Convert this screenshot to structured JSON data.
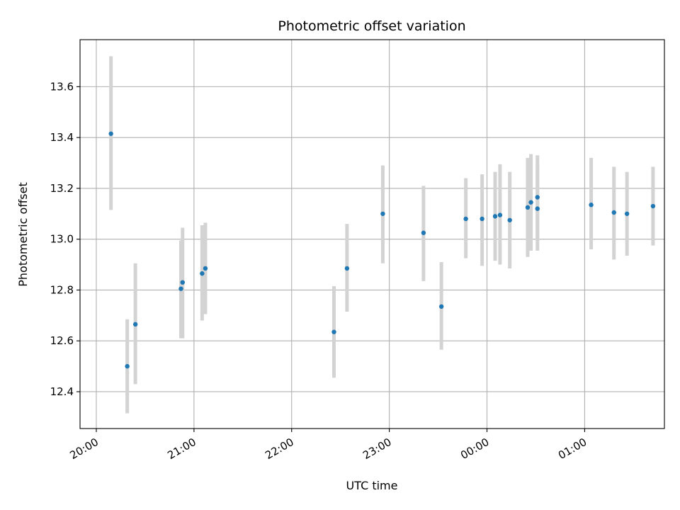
{
  "chart_data": {
    "type": "scatter",
    "title": "Photometric offset variation",
    "xlabel": "UTC time",
    "ylabel": "Photometric offset",
    "grid": true,
    "x_axis_type": "time",
    "xlim": [
      "19:50",
      "01:49"
    ],
    "ylim": [
      12.255,
      13.785
    ],
    "x_ticks": [
      "20:00",
      "21:00",
      "22:00",
      "23:00",
      "00:00",
      "01:00"
    ],
    "y_ticks": [
      12.4,
      12.6,
      12.8,
      13.0,
      13.2,
      13.4,
      13.6
    ],
    "points": [
      {
        "x": "20:09",
        "y": 13.415,
        "ylo": 13.115,
        "yhi": 13.72
      },
      {
        "x": "20:19",
        "y": 12.5,
        "ylo": 12.315,
        "yhi": 12.685
      },
      {
        "x": "20:24",
        "y": 12.665,
        "ylo": 12.43,
        "yhi": 12.905
      },
      {
        "x": "20:52",
        "y": 12.805,
        "ylo": 12.61,
        "yhi": 12.995
      },
      {
        "x": "20:53",
        "y": 12.83,
        "ylo": 12.61,
        "yhi": 13.045
      },
      {
        "x": "21:05",
        "y": 12.865,
        "ylo": 12.68,
        "yhi": 13.055
      },
      {
        "x": "21:07",
        "y": 12.885,
        "ylo": 12.705,
        "yhi": 13.065
      },
      {
        "x": "22:26",
        "y": 12.635,
        "ylo": 12.455,
        "yhi": 12.815
      },
      {
        "x": "22:34",
        "y": 12.885,
        "ylo": 12.715,
        "yhi": 13.06
      },
      {
        "x": "22:56",
        "y": 13.1,
        "ylo": 12.905,
        "yhi": 13.29
      },
      {
        "x": "23:21",
        "y": 13.025,
        "ylo": 12.835,
        "yhi": 13.21
      },
      {
        "x": "23:32",
        "y": 12.735,
        "ylo": 12.565,
        "yhi": 12.91
      },
      {
        "x": "23:47",
        "y": 13.08,
        "ylo": 12.925,
        "yhi": 13.24
      },
      {
        "x": "23:57",
        "y": 13.08,
        "ylo": 12.895,
        "yhi": 13.255
      },
      {
        "x": "00:05",
        "y": 13.09,
        "ylo": 12.915,
        "yhi": 13.265
      },
      {
        "x": "00:08",
        "y": 13.095,
        "ylo": 12.9,
        "yhi": 13.295
      },
      {
        "x": "00:14",
        "y": 13.075,
        "ylo": 12.885,
        "yhi": 13.265
      },
      {
        "x": "00:25",
        "y": 13.125,
        "ylo": 12.93,
        "yhi": 13.32
      },
      {
        "x": "00:27",
        "y": 13.145,
        "ylo": 12.955,
        "yhi": 13.335
      },
      {
        "x": "00:31",
        "y": 13.12,
        "ylo": 12.955,
        "yhi": 13.29
      },
      {
        "x": "00:31",
        "y": 13.165,
        "ylo": 12.995,
        "yhi": 13.33
      },
      {
        "x": "01:04",
        "y": 13.135,
        "ylo": 12.96,
        "yhi": 13.32
      },
      {
        "x": "01:18",
        "y": 13.105,
        "ylo": 12.92,
        "yhi": 13.285
      },
      {
        "x": "01:26",
        "y": 13.1,
        "ylo": 12.935,
        "yhi": 13.265
      },
      {
        "x": "01:42",
        "y": 13.13,
        "ylo": 12.975,
        "yhi": 13.285
      }
    ],
    "colors": {
      "marker": "#1f77b4",
      "errorbar": "#d3d3d3",
      "grid": "#b0b0b0"
    }
  }
}
